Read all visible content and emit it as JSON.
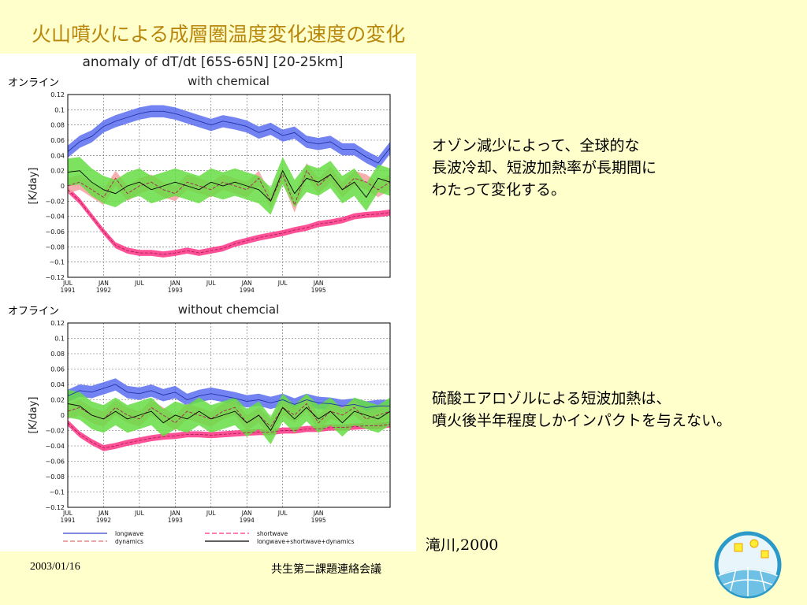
{
  "slide": {
    "title": "火山噴火による成層圏温度変化速度の変化",
    "text_block_1": [
      "オゾン減少によって、全球的な",
      "長波冷却、短波加熱率が長期間に",
      "わたって変化する。"
    ],
    "text_block_2": [
      "硫酸エアロゾルによる短波加熱は、",
      "噴火後半年程度しかインパクトを与えない。"
    ],
    "citation": "滝川,2000",
    "footer_date": "2003/01/16",
    "footer_meeting": "共生第二課題連絡会議",
    "panel_labels": [
      "オンライン",
      "オフライン"
    ]
  },
  "chart_data": [
    {
      "type": "area",
      "title": "anomaly of dT/dt [65S-65N] [20-25km]",
      "subtitle": "with chemical",
      "ylabel": "[K/day]",
      "ylim": [
        -0.12,
        0.12
      ],
      "yticks": [
        0.12,
        0.1,
        0.08,
        0.06,
        0.04,
        0.02,
        0,
        -0.02,
        -0.04,
        -0.06,
        -0.08,
        -0.1,
        -0.12
      ],
      "ytick_labels": [
        "0.12",
        "0.1",
        "0.08",
        "0.06",
        "0.04",
        "0.02",
        "0",
        "−0.02",
        "−0.04",
        "−0.06",
        "−0.08",
        "−0.1",
        "−0.12"
      ],
      "x_ticks": [
        [
          "JUL",
          "1991"
        ],
        [
          "JAN",
          "1992"
        ],
        [
          "JUL",
          ""
        ],
        [
          "JAN",
          "1993"
        ],
        [
          "JUL",
          ""
        ],
        [
          "JAN",
          "1994"
        ],
        [
          "JUL",
          ""
        ],
        [
          "JAN",
          "1995"
        ]
      ],
      "grid": true,
      "series": [
        {
          "name": "longwave",
          "color": "#5b6ef0",
          "months": [
            0,
            2,
            4,
            6,
            8,
            10,
            12,
            14,
            16,
            18,
            20,
            22,
            24,
            26,
            28,
            30,
            32,
            34,
            36,
            38,
            40,
            42,
            44,
            46,
            48,
            50,
            52,
            54
          ],
          "values": [
            0.045,
            0.058,
            0.065,
            0.078,
            0.085,
            0.09,
            0.095,
            0.098,
            0.098,
            0.095,
            0.09,
            0.085,
            0.08,
            0.085,
            0.082,
            0.078,
            0.07,
            0.075,
            0.066,
            0.07,
            0.058,
            0.055,
            0.058,
            0.048,
            0.048,
            0.038,
            0.03,
            0.05
          ],
          "spread": 0.008
        },
        {
          "name": "shortwave",
          "color": "#ff3385",
          "months": [
            0,
            2,
            4,
            6,
            8,
            10,
            12,
            14,
            16,
            18,
            20,
            22,
            24,
            26,
            28,
            30,
            32,
            34,
            36,
            38,
            40,
            42,
            44,
            46,
            48,
            50,
            52,
            54
          ],
          "values": [
            -0.005,
            -0.02,
            -0.04,
            -0.06,
            -0.078,
            -0.085,
            -0.088,
            -0.088,
            -0.09,
            -0.088,
            -0.085,
            -0.088,
            -0.085,
            -0.082,
            -0.076,
            -0.072,
            -0.068,
            -0.065,
            -0.062,
            -0.058,
            -0.055,
            -0.05,
            -0.048,
            -0.045,
            -0.04,
            -0.038,
            -0.037,
            -0.035
          ],
          "spread": 0.004
        },
        {
          "name": "dynamics",
          "color": "#f4a0a0",
          "months": [
            0,
            2,
            4,
            6,
            8,
            10,
            12,
            14,
            16,
            18,
            20,
            22,
            24,
            26,
            28,
            30,
            32,
            34,
            36,
            38,
            40,
            42,
            44,
            46,
            48,
            50,
            52,
            54
          ],
          "values": [
            0.0,
            0.005,
            -0.005,
            -0.015,
            0.01,
            -0.01,
            0.0,
            0.005,
            -0.005,
            -0.01,
            0.005,
            0.0,
            -0.005,
            0.005,
            0.0,
            -0.005,
            0.01,
            -0.02,
            0.015,
            -0.025,
            0.02,
            0.0,
            0.015,
            -0.005,
            0.01,
            0.005,
            -0.005,
            0.005
          ],
          "spread": 0.01
        },
        {
          "name": "longwave+shortwave+dynamics",
          "color": "#66dd44",
          "months": [
            0,
            2,
            4,
            6,
            8,
            10,
            12,
            14,
            16,
            18,
            20,
            22,
            24,
            26,
            28,
            30,
            32,
            34,
            36,
            38,
            40,
            42,
            44,
            46,
            48,
            50,
            52,
            54
          ],
          "values": [
            0.018,
            0.02,
            0.005,
            -0.005,
            -0.01,
            0.0,
            0.005,
            -0.005,
            0.0,
            0.005,
            0.0,
            -0.005,
            0.005,
            0.0,
            0.005,
            0.0,
            -0.005,
            -0.02,
            0.02,
            -0.01,
            0.01,
            0.005,
            0.015,
            -0.005,
            0.005,
            -0.015,
            0.01,
            0.005
          ],
          "spread": 0.018
        }
      ]
    },
    {
      "type": "area",
      "title": "",
      "subtitle": "without chemcial",
      "ylabel": "[K/day]",
      "ylim": [
        -0.12,
        0.12
      ],
      "yticks": [
        0.12,
        0.1,
        0.08,
        0.06,
        0.04,
        0.02,
        0,
        -0.02,
        -0.04,
        -0.06,
        -0.08,
        -0.1,
        -0.12
      ],
      "ytick_labels": [
        "0.12",
        "0.1",
        "0.08",
        "0.06",
        "0.04",
        "0.02",
        "0",
        "−0.02",
        "−0.04",
        "−0.06",
        "−0.08",
        "−0.1",
        "−0.12"
      ],
      "x_ticks": [
        [
          "JUL",
          "1991"
        ],
        [
          "JAN",
          "1992"
        ],
        [
          "JUL",
          ""
        ],
        [
          "JAN",
          "1993"
        ],
        [
          "JUL",
          ""
        ],
        [
          "JAN",
          "1994"
        ],
        [
          "JUL",
          ""
        ],
        [
          "JAN",
          "1995"
        ]
      ],
      "grid": true,
      "series": [
        {
          "name": "longwave",
          "color": "#5b6ef0",
          "months": [
            0,
            2,
            4,
            6,
            8,
            10,
            12,
            14,
            16,
            18,
            20,
            22,
            24,
            26,
            28,
            30,
            32,
            34,
            36,
            38,
            40,
            42,
            44,
            46,
            48,
            50,
            52,
            54
          ],
          "values": [
            0.025,
            0.032,
            0.03,
            0.035,
            0.04,
            0.03,
            0.028,
            0.032,
            0.026,
            0.03,
            0.02,
            0.025,
            0.028,
            0.025,
            0.022,
            0.018,
            0.02,
            0.016,
            0.02,
            0.014,
            0.02,
            0.016,
            0.015,
            0.012,
            0.014,
            0.01,
            0.012,
            0.012
          ],
          "spread": 0.008
        },
        {
          "name": "shortwave",
          "color": "#ff3385",
          "months": [
            0,
            2,
            4,
            6,
            8,
            10,
            12,
            14,
            16,
            18,
            20,
            22,
            24,
            26,
            28,
            30,
            32,
            34,
            36,
            38,
            40,
            42,
            44,
            46,
            48,
            50,
            52,
            54
          ],
          "values": [
            -0.01,
            -0.025,
            -0.035,
            -0.043,
            -0.04,
            -0.036,
            -0.033,
            -0.03,
            -0.028,
            -0.027,
            -0.025,
            -0.025,
            -0.026,
            -0.025,
            -0.024,
            -0.023,
            -0.022,
            -0.022,
            -0.02,
            -0.02,
            -0.018,
            -0.018,
            -0.016,
            -0.016,
            -0.015,
            -0.014,
            -0.014,
            -0.012
          ],
          "spread": 0.004
        },
        {
          "name": "dynamics",
          "color": "#f4a0a0",
          "months": [
            0,
            2,
            4,
            6,
            8,
            10,
            12,
            14,
            16,
            18,
            20,
            22,
            24,
            26,
            28,
            30,
            32,
            34,
            36,
            38,
            40,
            42,
            44,
            46,
            48,
            50,
            52,
            54
          ],
          "values": [
            0.005,
            0.01,
            0.0,
            -0.005,
            0.01,
            0.0,
            -0.005,
            0.01,
            0.0,
            -0.01,
            0.005,
            0.0,
            -0.005,
            0.005,
            0.01,
            -0.01,
            0.0,
            -0.015,
            0.01,
            0.0,
            0.015,
            -0.01,
            0.005,
            0.0,
            0.01,
            -0.005,
            0.0,
            0.005
          ],
          "spread": 0.01
        },
        {
          "name": "longwave+shortwave+dynamics",
          "color": "#66dd44",
          "months": [
            0,
            2,
            4,
            6,
            8,
            10,
            12,
            14,
            16,
            18,
            20,
            22,
            24,
            26,
            28,
            30,
            32,
            34,
            36,
            38,
            40,
            42,
            44,
            46,
            48,
            50,
            52,
            54
          ],
          "values": [
            0.015,
            0.012,
            0.0,
            -0.005,
            0.005,
            -0.005,
            0.0,
            0.005,
            -0.01,
            0.0,
            -0.005,
            0.005,
            -0.005,
            0.0,
            0.005,
            -0.01,
            0.0,
            -0.02,
            0.01,
            -0.005,
            0.01,
            -0.005,
            0.005,
            -0.01,
            0.005,
            0.0,
            -0.005,
            0.005
          ],
          "spread": 0.018
        }
      ]
    }
  ],
  "legend": [
    {
      "label": "longwave",
      "color": "#3344cc",
      "style": "solid"
    },
    {
      "label": "shortwave",
      "color": "#ff3385",
      "style": "dashed"
    },
    {
      "label": "dynamics",
      "color": "#e07070",
      "style": "dashed"
    },
    {
      "label": "longwave+shortwave+dynamics",
      "color": "#000000",
      "style": "solid"
    }
  ]
}
